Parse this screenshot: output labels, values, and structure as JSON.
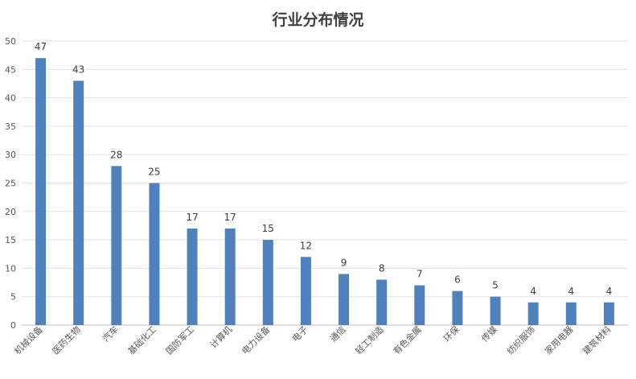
{
  "chart_data": {
    "type": "bar",
    "title": "行业分布情况",
    "xlabel": "",
    "ylabel": "",
    "categories": [
      "机械设备",
      "医药生物",
      "汽车",
      "基础化工",
      "国防军工",
      "计算机",
      "电力设备",
      "电子",
      "通信",
      "轻工制造",
      "有色金属",
      "环保",
      "传媒",
      "纺织服饰",
      "家用电器",
      "建筑材料"
    ],
    "values": [
      47,
      43,
      28,
      25,
      17,
      17,
      15,
      12,
      9,
      8,
      7,
      6,
      5,
      4,
      4,
      4
    ],
    "ylim": [
      0,
      50
    ],
    "yticks": [
      0,
      5,
      10,
      15,
      20,
      25,
      30,
      35,
      40,
      45,
      50
    ],
    "grid": true,
    "legend": "none",
    "data_labels": true,
    "bar_color": "#4f81bd"
  }
}
